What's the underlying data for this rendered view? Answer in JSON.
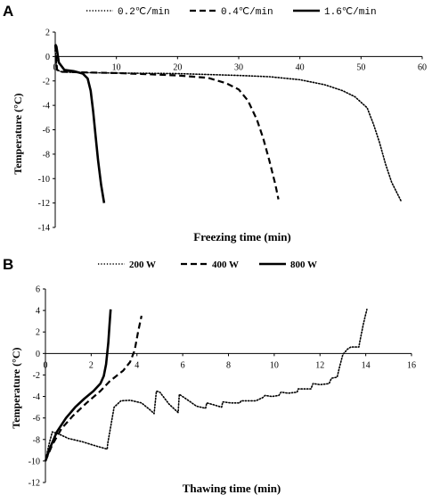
{
  "chart_data": [
    {
      "panel_label": "A",
      "type": "line",
      "xlabel": "Freezing time (min)",
      "ylabel": "Temperature (°C)",
      "xlim": [
        0,
        60
      ],
      "ylim": [
        -14,
        2
      ],
      "xticks": [
        0,
        10,
        20,
        30,
        40,
        50,
        60
      ],
      "yticks": [
        2,
        0,
        -2,
        -4,
        -6,
        -8,
        -10,
        -12,
        -14
      ],
      "grid": false,
      "legend": "top",
      "series": [
        {
          "name": "0.2℃/min",
          "style": "dotted",
          "x": [
            0,
            0.3,
            1,
            3,
            10,
            20,
            30,
            35,
            40,
            44,
            47,
            49,
            51,
            52,
            53,
            54,
            55,
            56.5
          ],
          "y": [
            0.5,
            -1.1,
            -1.25,
            -1.3,
            -1.35,
            -1.4,
            -1.55,
            -1.65,
            -1.9,
            -2.3,
            -2.8,
            -3.3,
            -4.2,
            -5.5,
            -7,
            -8.8,
            -10.3,
            -11.8
          ]
        },
        {
          "name": "0.4℃/min",
          "style": "dashed",
          "x": [
            0,
            0.3,
            1,
            5,
            10,
            15,
            20,
            25,
            28,
            30,
            31.5,
            33,
            34,
            35,
            36,
            36.5
          ],
          "y": [
            0.9,
            -1.1,
            -1.25,
            -1.3,
            -1.35,
            -1.45,
            -1.55,
            -1.75,
            -2.2,
            -2.7,
            -3.6,
            -5.2,
            -6.7,
            -8.5,
            -10.5,
            -11.7
          ]
        },
        {
          "name": "1.6℃/min",
          "style": "solid",
          "x": [
            0,
            0.2,
            0.6,
            1.5,
            3,
            4.5,
            5.3,
            5.8,
            6.2,
            6.6,
            7.0,
            7.5,
            8.0
          ],
          "y": [
            1.0,
            0.8,
            -0.5,
            -1.1,
            -1.2,
            -1.4,
            -1.8,
            -2.8,
            -4.5,
            -6.5,
            -8.5,
            -10.5,
            -12.0
          ]
        }
      ]
    },
    {
      "panel_label": "B",
      "type": "line",
      "xlabel": "Thawing time (min)",
      "ylabel": "Temperature (°C)",
      "xlim": [
        0,
        16
      ],
      "ylim": [
        -12,
        6
      ],
      "xticks": [
        0,
        2,
        4,
        6,
        8,
        10,
        12,
        14,
        16
      ],
      "yticks": [
        6,
        4,
        2,
        0,
        -2,
        -4,
        -6,
        -8,
        -10,
        -12
      ],
      "grid": false,
      "legend": "top",
      "series": [
        {
          "name": "200 W",
          "style": "dotted",
          "x": [
            0,
            0.15,
            0.3,
            0.6,
            1.0,
            1.6,
            2.2,
            2.7,
            2.72,
            3.0,
            3.3,
            3.7,
            4.2,
            4.6,
            4.75,
            4.85,
            5.0,
            5.4,
            5.8,
            5.85,
            6.2,
            6.6,
            7.0,
            7.05,
            7.4,
            7.7,
            7.75,
            8.1,
            8.5,
            8.55,
            8.8,
            9.2,
            9.5,
            9.6,
            9.9,
            10.2,
            10.3,
            10.6,
            11.0,
            11.05,
            11.3,
            11.6,
            11.7,
            12.0,
            12.4,
            12.5,
            12.75,
            12.85,
            13.0,
            13.2,
            13.35,
            13.7,
            13.75,
            13.9,
            14.05
          ],
          "y": [
            -10.0,
            -8.5,
            -7.3,
            -7.5,
            -7.9,
            -8.2,
            -8.6,
            -8.9,
            -8.4,
            -5.0,
            -4.4,
            -4.35,
            -4.6,
            -5.3,
            -5.6,
            -3.5,
            -3.6,
            -4.7,
            -5.5,
            -3.8,
            -4.3,
            -4.9,
            -5.1,
            -4.6,
            -4.8,
            -5.0,
            -4.5,
            -4.6,
            -4.6,
            -4.4,
            -4.4,
            -4.4,
            -4.1,
            -3.9,
            -4.0,
            -3.9,
            -3.6,
            -3.7,
            -3.6,
            -3.3,
            -3.3,
            -3.3,
            -2.8,
            -2.9,
            -2.8,
            -2.3,
            -2.2,
            -1.3,
            -0.1,
            0.4,
            0.6,
            0.6,
            1.2,
            2.8,
            4.1
          ]
        },
        {
          "name": "400 W",
          "style": "dashed",
          "x": [
            0,
            0.3,
            0.7,
            1.2,
            1.8,
            2.4,
            2.8,
            3.1,
            3.4,
            3.7,
            3.9,
            4.05,
            4.2
          ],
          "y": [
            -10.0,
            -8.5,
            -7.0,
            -5.8,
            -4.6,
            -3.5,
            -2.6,
            -2.1,
            -1.6,
            -0.8,
            0.3,
            2.0,
            3.5
          ]
        },
        {
          "name": "800 W",
          "style": "solid",
          "x": [
            0,
            0.2,
            0.5,
            0.9,
            1.3,
            1.7,
            2.1,
            2.4,
            2.55,
            2.65,
            2.75,
            2.8,
            2.85
          ],
          "y": [
            -10.0,
            -8.8,
            -7.3,
            -6.0,
            -5.0,
            -4.2,
            -3.5,
            -2.8,
            -2.1,
            -1.0,
            1.0,
            2.6,
            4.1
          ]
        }
      ]
    }
  ]
}
